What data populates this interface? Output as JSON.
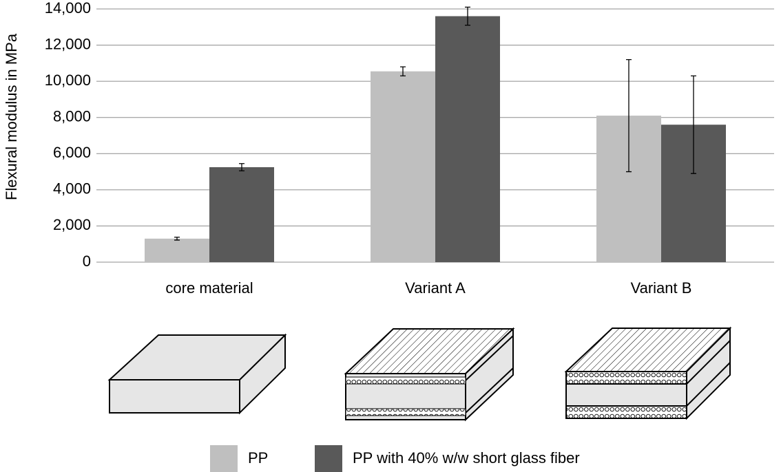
{
  "chart_data": {
    "type": "bar",
    "ylabel": "Flexural modulus in MPa",
    "categories": [
      "core material",
      "Variant A",
      "Variant B"
    ],
    "series": [
      {
        "name": "PP",
        "color": "#bfbfbf",
        "values": [
          1300,
          10550,
          8100
        ],
        "errors": [
          80,
          250,
          3100
        ]
      },
      {
        "name": "PP with 40% w/w short glass fiber",
        "color": "#595959",
        "values": [
          5250,
          13600,
          7600
        ],
        "errors": [
          200,
          500,
          2700
        ]
      }
    ],
    "ylim": [
      0,
      14000
    ],
    "yticks": [
      0,
      {
        "value": 2000,
        "label": "2,000"
      },
      {
        "value": 4000,
        "label": "4,000"
      },
      {
        "value": 6000,
        "label": "6,000"
      },
      {
        "value": 8000,
        "label": "8,000"
      },
      {
        "value": 10000,
        "label": "10,000"
      },
      {
        "value": 12000,
        "label": "12,000"
      },
      {
        "value": 14000,
        "label": "14,000"
      }
    ],
    "grid": true,
    "legend": "bottom"
  }
}
